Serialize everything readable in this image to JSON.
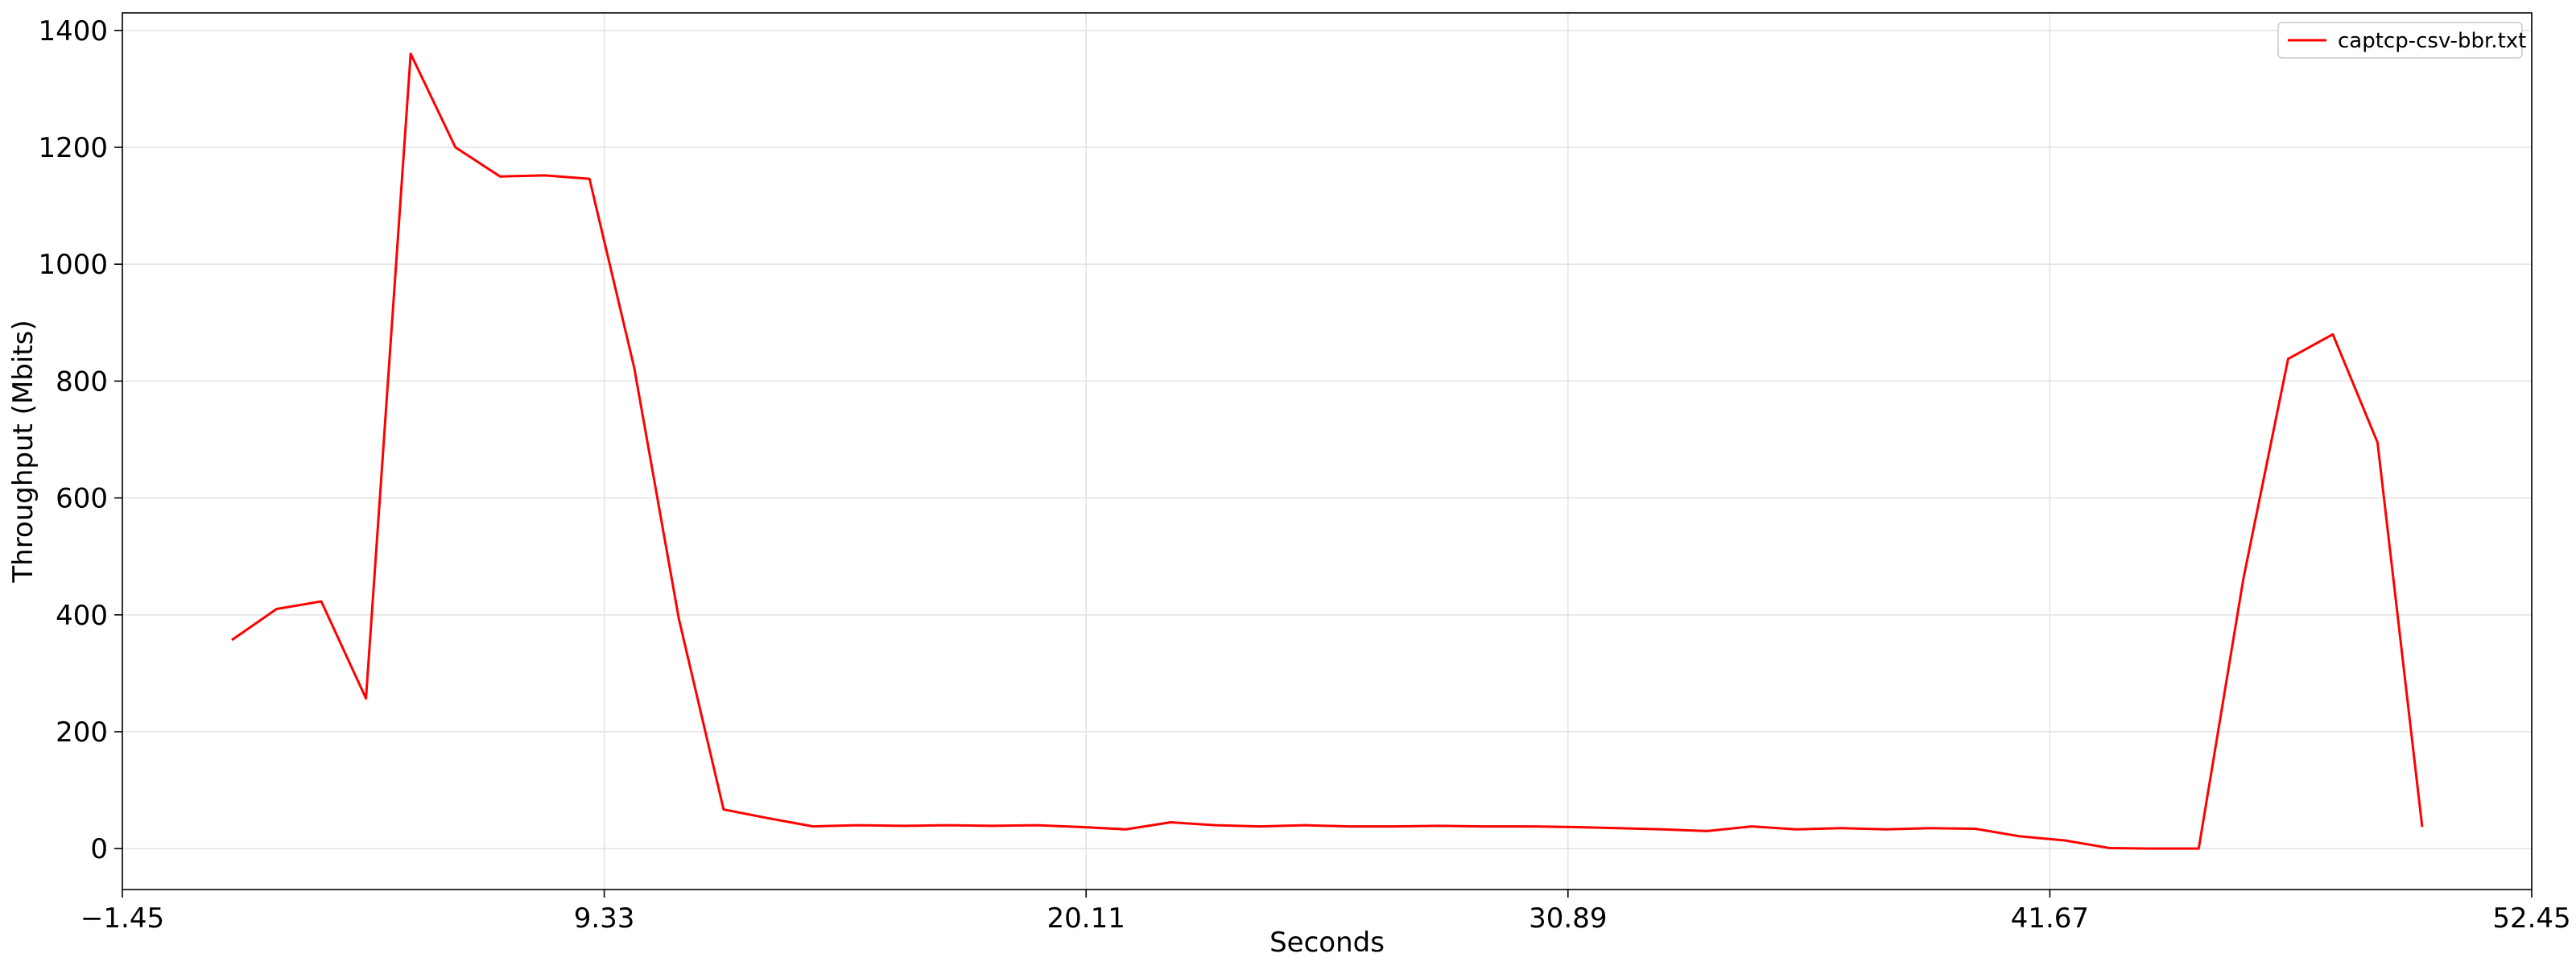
{
  "chart_data": {
    "type": "line",
    "title": "",
    "xlabel": "Seconds",
    "ylabel": "Throughput (Mbits)",
    "xlim": [
      -1.45,
      52.45
    ],
    "ylim": [
      -70,
      1430
    ],
    "x_ticks": [
      -1.45,
      9.33,
      20.11,
      30.89,
      41.67,
      52.45
    ],
    "x_tick_labels": [
      "−1.45",
      "9.33",
      "20.11",
      "30.89",
      "41.67",
      "52.45"
    ],
    "y_ticks": [
      0,
      200,
      400,
      600,
      800,
      1000,
      1200,
      1400
    ],
    "y_tick_labels": [
      "0",
      "200",
      "400",
      "600",
      "800",
      "1000",
      "1200",
      "1400"
    ],
    "grid": true,
    "legend_position": "top-right",
    "series": [
      {
        "name": "captcp-csv-bbr.txt",
        "color": "#ff0000",
        "x": [
          1.0,
          2.0,
          3.0,
          4.0,
          5.0,
          6.0,
          7.0,
          8.0,
          9.0,
          10.0,
          11.0,
          12.0,
          13.0,
          14.0,
          15.0,
          16.0,
          17.0,
          18.0,
          19.0,
          20.0,
          21.0,
          22.0,
          23.0,
          24.0,
          25.0,
          26.0,
          27.0,
          28.0,
          29.0,
          30.0,
          31.0,
          32.0,
          33.0,
          34.0,
          35.0,
          36.0,
          37.0,
          38.0,
          39.0,
          40.0,
          41.0,
          42.0,
          43.0,
          44.0,
          45.0,
          46.0,
          47.0,
          48.0,
          49.0,
          50.0
        ],
        "y": [
          357,
          410,
          423,
          257,
          1360,
          1200,
          1150,
          1152,
          1146,
          823,
          393,
          67,
          52,
          38,
          40,
          39,
          40,
          39,
          40,
          37,
          33,
          45,
          40,
          38,
          40,
          38,
          38,
          39,
          38,
          38,
          37,
          35,
          33,
          30,
          38,
          33,
          35,
          33,
          35,
          34,
          21,
          14,
          1,
          0,
          0,
          462,
          838,
          880,
          695,
          37
        ]
      }
    ]
  }
}
